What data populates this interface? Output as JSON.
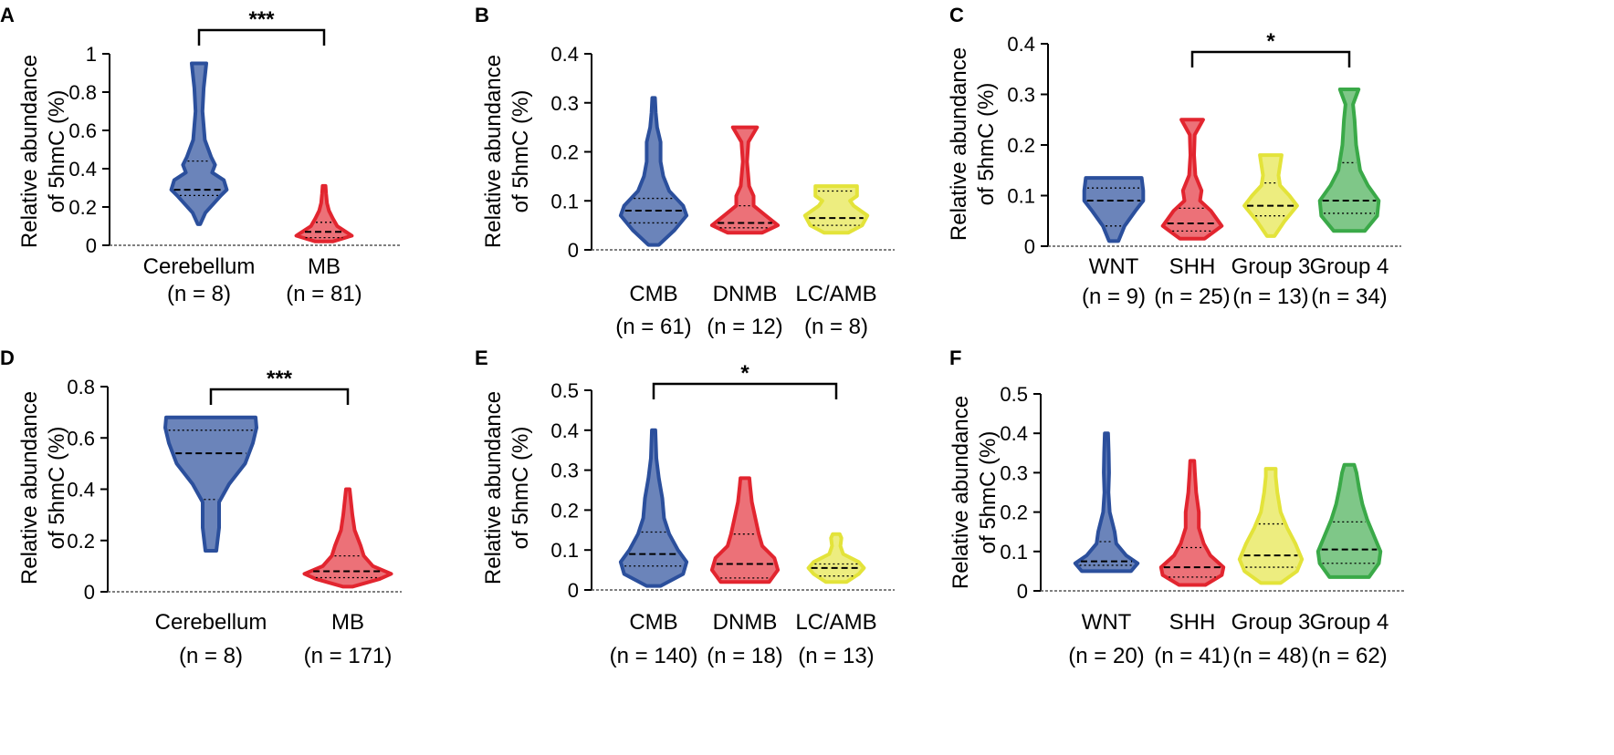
{
  "figure": {
    "colors": {
      "blue": "#2b4f9c",
      "red": "#e2252f",
      "yellow": "#e3e33a",
      "green": "#3aa948"
    }
  },
  "chart_data": [
    {
      "panel": "A",
      "type": "violin",
      "ylabel": [
        "Relative abundance",
        "of 5hmC (%)"
      ],
      "ylim": [
        0,
        1
      ],
      "yticks": [
        "0",
        "0.2",
        "0.4",
        "0.6",
        "0.8",
        "1"
      ],
      "ytick_values": [
        0,
        0.2,
        0.4,
        0.6,
        0.8,
        1
      ],
      "categories": [
        "Cerebellum",
        "MB"
      ],
      "counts": [
        "(n = 8)",
        "(n = 81)"
      ],
      "series": [
        {
          "name": "Cerebellum",
          "color": "blue",
          "min": 0.11,
          "max": 0.95,
          "median": 0.29,
          "q1": 0.26,
          "q3": 0.44,
          "profile": [
            [
              0.11,
              0.04
            ],
            [
              0.17,
              0.22
            ],
            [
              0.26,
              0.75
            ],
            [
              0.29,
              0.95
            ],
            [
              0.34,
              0.85
            ],
            [
              0.38,
              0.45
            ],
            [
              0.42,
              0.55
            ],
            [
              0.46,
              0.42
            ],
            [
              0.55,
              0.2
            ],
            [
              0.7,
              0.12
            ],
            [
              0.82,
              0.16
            ],
            [
              0.95,
              0.25
            ]
          ]
        },
        {
          "name": "MB",
          "color": "red",
          "min": 0.02,
          "max": 0.31,
          "median": 0.07,
          "q1": 0.04,
          "q3": 0.12,
          "profile": [
            [
              0.02,
              0.3
            ],
            [
              0.05,
              0.95
            ],
            [
              0.07,
              0.75
            ],
            [
              0.1,
              0.45
            ],
            [
              0.14,
              0.3
            ],
            [
              0.18,
              0.17
            ],
            [
              0.22,
              0.1
            ],
            [
              0.27,
              0.07
            ],
            [
              0.31,
              0.05
            ]
          ]
        }
      ],
      "significance": {
        "label": "***",
        "from": "Cerebellum",
        "to": "MB"
      }
    },
    {
      "panel": "B",
      "type": "violin",
      "ylabel": [
        "Relative abundance",
        "of 5hmC (%)"
      ],
      "ylim": [
        0,
        0.4
      ],
      "yticks": [
        "0",
        "0.1",
        "0.2",
        "0.3",
        "0.4"
      ],
      "ytick_values": [
        0,
        0.1,
        0.2,
        0.3,
        0.4
      ],
      "categories": [
        "CMB",
        "DNMB",
        "LC/AMB"
      ],
      "counts": [
        "(n = 61)",
        "(n = 12)",
        "(n = 8)"
      ],
      "series": [
        {
          "name": "CMB",
          "color": "blue",
          "min": 0.01,
          "max": 0.31,
          "median": 0.08,
          "q1": 0.055,
          "q3": 0.105,
          "profile": [
            [
              0.01,
              0.15
            ],
            [
              0.04,
              0.6
            ],
            [
              0.07,
              0.95
            ],
            [
              0.09,
              0.85
            ],
            [
              0.12,
              0.45
            ],
            [
              0.15,
              0.28
            ],
            [
              0.18,
              0.2
            ],
            [
              0.22,
              0.2
            ],
            [
              0.25,
              0.1
            ],
            [
              0.28,
              0.06
            ],
            [
              0.31,
              0.04
            ]
          ]
        },
        {
          "name": "DNMB",
          "color": "red",
          "min": 0.035,
          "max": 0.25,
          "median": 0.055,
          "q1": 0.045,
          "q3": 0.09,
          "profile": [
            [
              0.035,
              0.5
            ],
            [
              0.05,
              0.95
            ],
            [
              0.07,
              0.6
            ],
            [
              0.09,
              0.25
            ],
            [
              0.11,
              0.25
            ],
            [
              0.13,
              0.12
            ],
            [
              0.18,
              0.06
            ],
            [
              0.22,
              0.1
            ],
            [
              0.25,
              0.35
            ]
          ]
        },
        {
          "name": "LC/AMB",
          "color": "yellow",
          "min": 0.035,
          "max": 0.13,
          "median": 0.065,
          "q1": 0.05,
          "q3": 0.12,
          "profile": [
            [
              0.035,
              0.35
            ],
            [
              0.05,
              0.75
            ],
            [
              0.07,
              0.9
            ],
            [
              0.09,
              0.5
            ],
            [
              0.1,
              0.4
            ],
            [
              0.11,
              0.6
            ],
            [
              0.13,
              0.6
            ]
          ]
        }
      ]
    },
    {
      "panel": "C",
      "type": "violin",
      "ylabel": [
        "Relative abundance",
        "of 5hmC (%)"
      ],
      "ylim": [
        0,
        0.4
      ],
      "yticks": [
        "0",
        "0.1",
        "0.2",
        "0.3",
        "0.4"
      ],
      "ytick_values": [
        0,
        0.1,
        0.2,
        0.3,
        0.4
      ],
      "categories": [
        "WNT",
        "SHH",
        "Group 3",
        "Group 4"
      ],
      "counts": [
        "(n = 9)",
        "(n = 25)",
        "(n = 13)",
        "(n = 34)"
      ],
      "series": [
        {
          "name": "WNT",
          "color": "blue",
          "min": 0.01,
          "max": 0.135,
          "median": 0.09,
          "q1": 0.04,
          "q3": 0.115,
          "profile": [
            [
              0.01,
              0.15
            ],
            [
              0.04,
              0.35
            ],
            [
              0.07,
              0.7
            ],
            [
              0.09,
              0.95
            ],
            [
              0.11,
              0.95
            ],
            [
              0.135,
              0.9
            ]
          ]
        },
        {
          "name": "SHH",
          "color": "red",
          "min": 0.015,
          "max": 0.25,
          "median": 0.045,
          "q1": 0.03,
          "q3": 0.075,
          "profile": [
            [
              0.015,
              0.4
            ],
            [
              0.04,
              0.95
            ],
            [
              0.07,
              0.6
            ],
            [
              0.09,
              0.25
            ],
            [
              0.11,
              0.3
            ],
            [
              0.14,
              0.1
            ],
            [
              0.18,
              0.06
            ],
            [
              0.22,
              0.08
            ],
            [
              0.25,
              0.35
            ]
          ]
        },
        {
          "name": "Group 3",
          "color": "yellow",
          "min": 0.02,
          "max": 0.18,
          "median": 0.08,
          "q1": 0.06,
          "q3": 0.125,
          "profile": [
            [
              0.02,
              0.12
            ],
            [
              0.05,
              0.45
            ],
            [
              0.08,
              0.85
            ],
            [
              0.1,
              0.6
            ],
            [
              0.12,
              0.3
            ],
            [
              0.14,
              0.25
            ],
            [
              0.16,
              0.3
            ],
            [
              0.18,
              0.35
            ]
          ]
        },
        {
          "name": "Group 4",
          "color": "green",
          "min": 0.03,
          "max": 0.31,
          "median": 0.09,
          "q1": 0.065,
          "q3": 0.165,
          "profile": [
            [
              0.03,
              0.5
            ],
            [
              0.06,
              0.9
            ],
            [
              0.09,
              0.95
            ],
            [
              0.12,
              0.6
            ],
            [
              0.15,
              0.35
            ],
            [
              0.2,
              0.22
            ],
            [
              0.25,
              0.17
            ],
            [
              0.28,
              0.12
            ],
            [
              0.31,
              0.3
            ]
          ]
        }
      ],
      "significance": {
        "label": "*",
        "from": "SHH",
        "to": "Group 4"
      }
    },
    {
      "panel": "D",
      "type": "violin",
      "ylabel": [
        "Relative abundance",
        "of 5hmC (%)"
      ],
      "ylim": [
        0,
        0.8
      ],
      "yticks": [
        "0",
        "0.2",
        "0.4",
        "0.6",
        "0.8"
      ],
      "ytick_values": [
        0,
        0.2,
        0.4,
        0.6,
        0.8
      ],
      "categories": [
        "Cerebellum",
        "MB"
      ],
      "counts": [
        "(n = 8)",
        "(n = 171)"
      ],
      "series": [
        {
          "name": "Cerebellum",
          "color": "blue",
          "min": 0.16,
          "max": 0.68,
          "median": 0.54,
          "q1": 0.36,
          "q3": 0.63,
          "profile": [
            [
              0.16,
              0.12
            ],
            [
              0.25,
              0.18
            ],
            [
              0.35,
              0.18
            ],
            [
              0.42,
              0.4
            ],
            [
              0.5,
              0.75
            ],
            [
              0.58,
              0.92
            ],
            [
              0.64,
              1.0
            ],
            [
              0.68,
              0.98
            ]
          ]
        },
        {
          "name": "MB",
          "color": "red",
          "min": 0.02,
          "max": 0.4,
          "median": 0.08,
          "q1": 0.055,
          "q3": 0.14,
          "profile": [
            [
              0.02,
              0.1
            ],
            [
              0.05,
              0.7
            ],
            [
              0.07,
              0.95
            ],
            [
              0.1,
              0.55
            ],
            [
              0.14,
              0.35
            ],
            [
              0.18,
              0.28
            ],
            [
              0.24,
              0.15
            ],
            [
              0.3,
              0.1
            ],
            [
              0.35,
              0.07
            ],
            [
              0.4,
              0.04
            ]
          ]
        }
      ],
      "significance": {
        "label": "***",
        "from": "Cerebellum",
        "to": "MB"
      }
    },
    {
      "panel": "E",
      "type": "violin",
      "ylabel": [
        "Relative abundance",
        "of 5hmC (%)"
      ],
      "ylim": [
        0,
        0.5
      ],
      "yticks": [
        "0",
        "0.1",
        "0.2",
        "0.3",
        "0.4",
        "0.5"
      ],
      "ytick_values": [
        0,
        0.1,
        0.2,
        0.3,
        0.4,
        0.5
      ],
      "categories": [
        "CMB",
        "DNMB",
        "LC/AMB"
      ],
      "counts": [
        "(n = 140)",
        "(n = 18)",
        "(n = 13)"
      ],
      "series": [
        {
          "name": "CMB",
          "color": "blue",
          "min": 0.01,
          "max": 0.4,
          "median": 0.09,
          "q1": 0.06,
          "q3": 0.145,
          "profile": [
            [
              0.01,
              0.2
            ],
            [
              0.04,
              0.85
            ],
            [
              0.07,
              0.95
            ],
            [
              0.1,
              0.7
            ],
            [
              0.14,
              0.45
            ],
            [
              0.18,
              0.3
            ],
            [
              0.23,
              0.25
            ],
            [
              0.28,
              0.15
            ],
            [
              0.33,
              0.08
            ],
            [
              0.4,
              0.05
            ]
          ]
        },
        {
          "name": "DNMB",
          "color": "red",
          "min": 0.02,
          "max": 0.28,
          "median": 0.065,
          "q1": 0.03,
          "q3": 0.14,
          "profile": [
            [
              0.02,
              0.7
            ],
            [
              0.05,
              0.95
            ],
            [
              0.08,
              0.85
            ],
            [
              0.11,
              0.5
            ],
            [
              0.14,
              0.4
            ],
            [
              0.18,
              0.3
            ],
            [
              0.22,
              0.2
            ],
            [
              0.26,
              0.15
            ],
            [
              0.28,
              0.13
            ]
          ]
        },
        {
          "name": "LC/AMB",
          "color": "yellow",
          "min": 0.02,
          "max": 0.14,
          "median": 0.055,
          "q1": 0.035,
          "q3": 0.065,
          "profile": [
            [
              0.02,
              0.3
            ],
            [
              0.04,
              0.65
            ],
            [
              0.055,
              0.8
            ],
            [
              0.07,
              0.65
            ],
            [
              0.09,
              0.2
            ],
            [
              0.11,
              0.12
            ],
            [
              0.13,
              0.15
            ],
            [
              0.14,
              0.1
            ]
          ]
        }
      ],
      "significance": {
        "label": "*",
        "from": "CMB",
        "to": "LC/AMB"
      }
    },
    {
      "panel": "F",
      "type": "violin",
      "ylabel": [
        "Relative abundance",
        "of 5hmC (%)"
      ],
      "ylim": [
        0,
        0.5
      ],
      "yticks": [
        "0",
        "0.1",
        "0.2",
        "0.3",
        "0.4",
        "0.5"
      ],
      "ytick_values": [
        0,
        0.1,
        0.2,
        0.3,
        0.4,
        0.5
      ],
      "categories": [
        "WNT",
        "SHH",
        "Group 3",
        "Group 4"
      ],
      "counts": [
        "(n = 20)",
        "(n = 41)",
        "(n = 48)",
        "(n = 62)"
      ],
      "series": [
        {
          "name": "WNT",
          "color": "blue",
          "min": 0.05,
          "max": 0.4,
          "median": 0.075,
          "q1": 0.065,
          "q3": 0.125,
          "profile": [
            [
              0.05,
              0.75
            ],
            [
              0.07,
              0.95
            ],
            [
              0.09,
              0.6
            ],
            [
              0.12,
              0.3
            ],
            [
              0.15,
              0.25
            ],
            [
              0.2,
              0.1
            ],
            [
              0.25,
              0.06
            ],
            [
              0.3,
              0.08
            ],
            [
              0.35,
              0.07
            ],
            [
              0.4,
              0.05
            ]
          ]
        },
        {
          "name": "SHH",
          "color": "red",
          "min": 0.015,
          "max": 0.33,
          "median": 0.06,
          "q1": 0.035,
          "q3": 0.11,
          "profile": [
            [
              0.015,
              0.4
            ],
            [
              0.04,
              0.9
            ],
            [
              0.06,
              0.95
            ],
            [
              0.09,
              0.55
            ],
            [
              0.12,
              0.35
            ],
            [
              0.16,
              0.2
            ],
            [
              0.2,
              0.2
            ],
            [
              0.25,
              0.12
            ],
            [
              0.3,
              0.08
            ],
            [
              0.33,
              0.06
            ]
          ]
        },
        {
          "name": "Group 3",
          "color": "yellow",
          "min": 0.02,
          "max": 0.31,
          "median": 0.09,
          "q1": 0.06,
          "q3": 0.17,
          "profile": [
            [
              0.02,
              0.3
            ],
            [
              0.05,
              0.8
            ],
            [
              0.08,
              0.95
            ],
            [
              0.12,
              0.75
            ],
            [
              0.16,
              0.5
            ],
            [
              0.2,
              0.3
            ],
            [
              0.25,
              0.2
            ],
            [
              0.29,
              0.15
            ],
            [
              0.31,
              0.15
            ]
          ]
        },
        {
          "name": "Group 4",
          "color": "green",
          "min": 0.035,
          "max": 0.32,
          "median": 0.105,
          "q1": 0.07,
          "q3": 0.175,
          "profile": [
            [
              0.035,
              0.6
            ],
            [
              0.07,
              0.9
            ],
            [
              0.1,
              0.95
            ],
            [
              0.14,
              0.75
            ],
            [
              0.18,
              0.55
            ],
            [
              0.22,
              0.4
            ],
            [
              0.26,
              0.3
            ],
            [
              0.3,
              0.22
            ],
            [
              0.32,
              0.15
            ]
          ]
        }
      ]
    }
  ]
}
